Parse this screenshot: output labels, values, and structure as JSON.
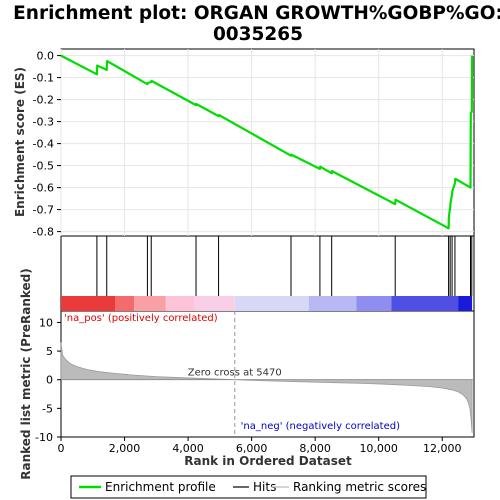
{
  "title_line1": "Enrichment plot: ORGAN GROWTH%GOBP%GO:",
  "title_line2": "0035265",
  "chart_data": {
    "type": "line",
    "x_range": [
      0,
      13000
    ],
    "x_ticks": [
      "0",
      "2,000",
      "4,000",
      "6,000",
      "8,000",
      "10,000",
      "12,000"
    ],
    "x_tick_values": [
      0,
      2000,
      4000,
      6000,
      8000,
      10000,
      12000
    ],
    "xlabel": "Rank in Ordered Dataset",
    "es_panel": {
      "ylabel": "Enrichment score (ES)",
      "ylim": [
        -0.82,
        0.03
      ],
      "y_ticks": [
        "0.0",
        "-0.1",
        "-0.2",
        "-0.3",
        "-0.4",
        "-0.5",
        "-0.6",
        "-0.7",
        "-0.8"
      ],
      "y_tick_values": [
        0.0,
        -0.1,
        -0.2,
        -0.3,
        -0.4,
        -0.5,
        -0.6,
        -0.7,
        -0.8
      ],
      "series": [
        {
          "name": "Enrichment profile",
          "color": "#00dd00",
          "x": [
            0,
            1130,
            1140,
            1440,
            1450,
            2720,
            2730,
            2840,
            2850,
            4250,
            4260,
            4960,
            4970,
            7240,
            7250,
            8150,
            8160,
            8520,
            8530,
            10520,
            10530,
            12200,
            12210,
            12250,
            12260,
            12310,
            12320,
            12400,
            12410,
            12890,
            12900,
            12930,
            12940
          ],
          "y": [
            0.0,
            -0.085,
            -0.045,
            -0.065,
            -0.025,
            -0.13,
            -0.125,
            -0.12,
            -0.115,
            -0.225,
            -0.22,
            -0.275,
            -0.27,
            -0.455,
            -0.45,
            -0.515,
            -0.505,
            -0.535,
            -0.525,
            -0.675,
            -0.655,
            -0.785,
            -0.73,
            -0.69,
            -0.67,
            -0.63,
            -0.615,
            -0.58,
            -0.56,
            -0.6,
            -0.26,
            -0.255,
            0.0
          ]
        }
      ]
    },
    "hits": [
      1130,
      1440,
      2720,
      2840,
      4250,
      4960,
      7240,
      8150,
      8520,
      10520,
      12200,
      12250,
      12310,
      12400,
      12890,
      12930
    ],
    "metric_panel": {
      "ylabel": "Ranked list metric (PreRanked)",
      "ylim": [
        -10,
        12
      ],
      "y_ticks": [
        "10",
        "5",
        "0",
        "-5",
        "-10"
      ],
      "y_tick_values": [
        10,
        5,
        0,
        -5,
        -10
      ],
      "fill_color": "#bbbbbb",
      "profile_x": [
        0,
        50,
        150,
        300,
        500,
        800,
        1200,
        1700,
        2300,
        3000,
        3800,
        4600,
        5470,
        6500,
        7500,
        8500,
        9500,
        10300,
        11000,
        11600,
        12000,
        12300,
        12500,
        12650,
        12750,
        12820,
        12870,
        12910,
        12940
      ],
      "profile_y": [
        6.5,
        4.3,
        3.5,
        2.8,
        2.3,
        1.8,
        1.4,
        1.1,
        0.8,
        0.55,
        0.35,
        0.18,
        0.0,
        -0.2,
        -0.35,
        -0.5,
        -0.65,
        -0.8,
        -1.0,
        -1.2,
        -1.45,
        -1.75,
        -2.1,
        -2.6,
        -3.2,
        -4.0,
        -5.0,
        -6.8,
        -9.3
      ],
      "zero_cross_label": "Zero cross at 5470",
      "zero_cross_x": 5470,
      "pos_label": "'na_pos' (positively correlated)",
      "neg_label": "'na_neg' (negatively correlated)",
      "pos_color": "#dd0000",
      "neg_color": "#0000cc"
    },
    "color_bar": {
      "segments": [
        {
          "x0": 0,
          "x1": 1700,
          "color": "#ea3a3a"
        },
        {
          "x0": 1700,
          "x1": 2300,
          "color": "#f36b6b"
        },
        {
          "x0": 2300,
          "x1": 3300,
          "color": "#f9a0a4"
        },
        {
          "x0": 3300,
          "x1": 4200,
          "color": "#fcc4d6"
        },
        {
          "x0": 4200,
          "x1": 5470,
          "color": "#f8cfe6"
        },
        {
          "x0": 5470,
          "x1": 7800,
          "color": "#d7d7f8"
        },
        {
          "x0": 7800,
          "x1": 9300,
          "color": "#b8b8f5"
        },
        {
          "x0": 9300,
          "x1": 10400,
          "color": "#8e8ef0"
        },
        {
          "x0": 10400,
          "x1": 12500,
          "color": "#4f4fe6"
        },
        {
          "x0": 12500,
          "x1": 12940,
          "color": "#1a1ad9"
        }
      ]
    },
    "legend": [
      {
        "label": "Enrichment profile",
        "color": "#00dd00",
        "kind": "thick"
      },
      {
        "label": "Hits",
        "color": "#000000",
        "kind": "thin"
      },
      {
        "label": "Ranking metric scores",
        "color": "#bbbbbb",
        "kind": "thin"
      }
    ]
  }
}
